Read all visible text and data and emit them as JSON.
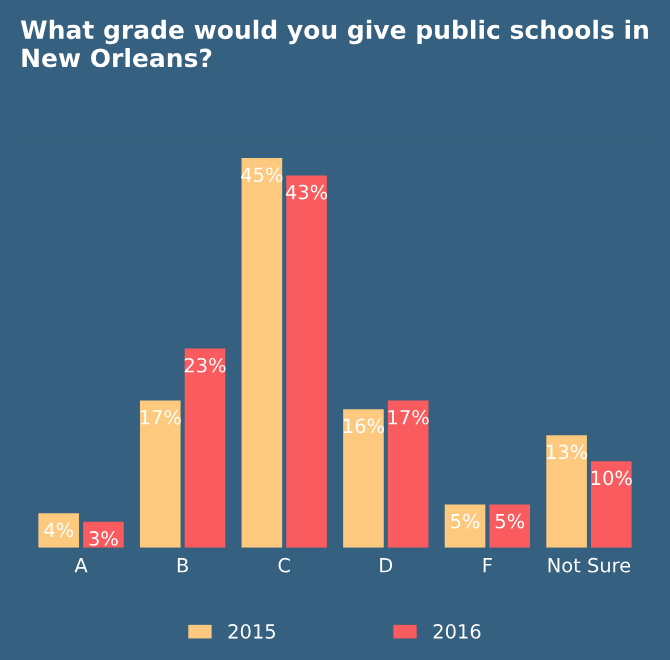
{
  "chart_data": {
    "type": "bar",
    "title": "What grade would you give public schools in\nNew Orleans?",
    "categories": [
      "A",
      "B",
      "C",
      "D",
      "F",
      "Not Sure"
    ],
    "series": [
      {
        "name": "2015",
        "color": "#fcc97f",
        "values": [
          4,
          17,
          45,
          16,
          5,
          13
        ],
        "value_labels": [
          "4%",
          "17%",
          "45%",
          "16%",
          "5%",
          "13%"
        ]
      },
      {
        "name": "2016",
        "color": "#f95b5e",
        "values": [
          3,
          23,
          43,
          17,
          5,
          10
        ],
        "value_labels": [
          "3%",
          "23%",
          "43%",
          "17%",
          "5%",
          "10%"
        ]
      }
    ],
    "legend": "bottom",
    "grid": false,
    "tick_labels": "x"
  }
}
